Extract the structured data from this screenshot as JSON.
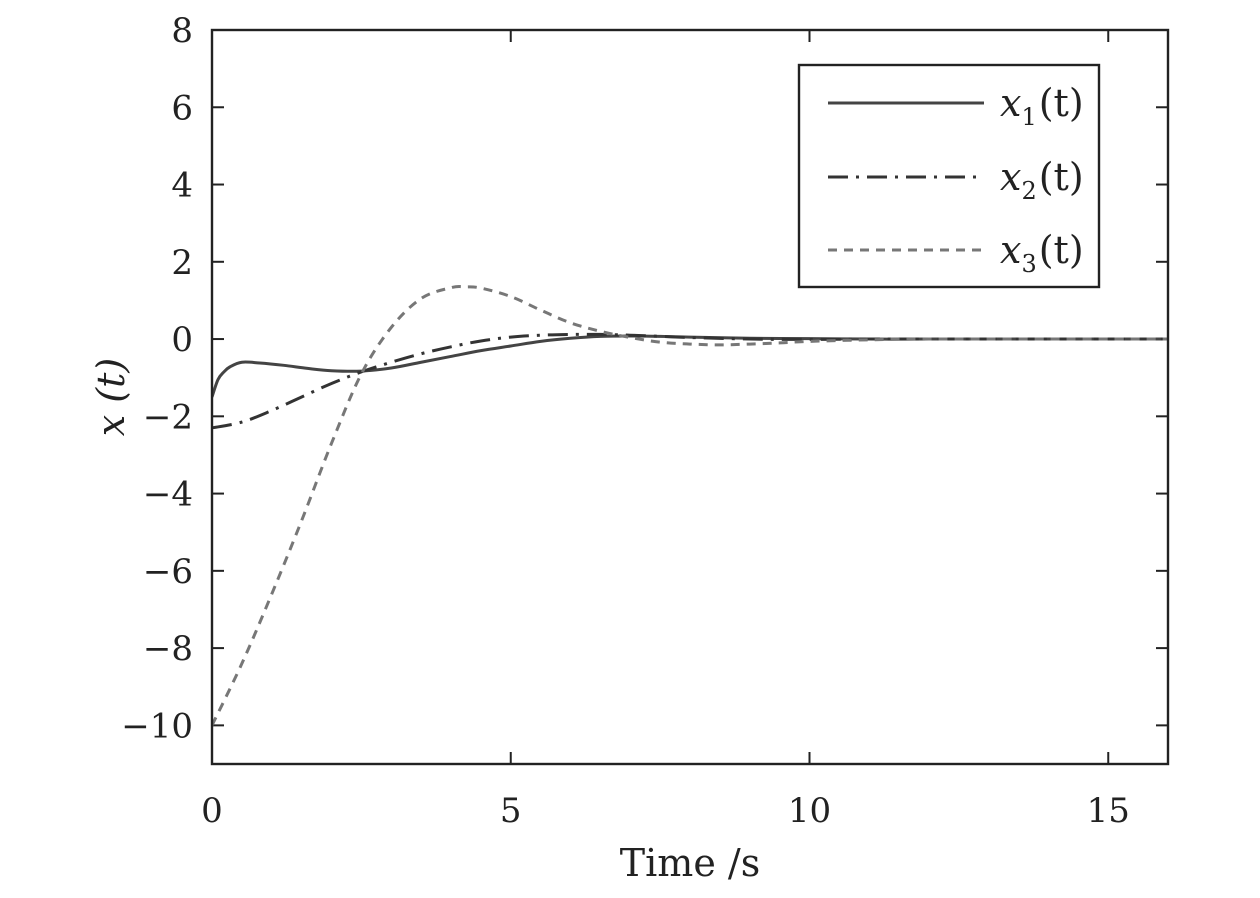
{
  "chart_data": {
    "type": "line",
    "title": "",
    "xlabel": "Time /s",
    "ylabel": "x (t)",
    "xlim": [
      0,
      16
    ],
    "ylim": [
      -11,
      8
    ],
    "xticks": [
      0,
      5,
      10,
      15
    ],
    "yticks": [
      8,
      6,
      4,
      2,
      0,
      -2,
      -4,
      -6,
      -8,
      -10
    ],
    "xtick_labels": [
      "0",
      "5",
      "10",
      "15"
    ],
    "ytick_labels": [
      "8",
      "6",
      "4",
      "2",
      "0",
      "−2",
      "−4",
      "−6",
      "−8",
      "−10"
    ],
    "grid": false,
    "legend_position": "top-right",
    "legend_entries": [
      {
        "symbol": "x",
        "subscript": "1",
        "paren": "(t)"
      },
      {
        "symbol": "x",
        "subscript": "2",
        "paren": "(t)"
      },
      {
        "symbol": "x",
        "subscript": "3",
        "paren": "(t)"
      }
    ],
    "series": [
      {
        "name": "x1(t)",
        "style": "solid",
        "color": "#444444",
        "x": [
          0,
          0.1,
          0.2,
          0.3,
          0.5,
          0.8,
          1.2,
          1.6,
          2.0,
          2.5,
          3.0,
          3.5,
          4.0,
          4.5,
          5.0,
          5.5,
          6.0,
          6.5,
          7.0,
          7.5,
          8.0,
          9.0,
          10.0,
          11.0,
          12.0,
          14.0,
          16.0
        ],
        "y": [
          -1.5,
          -1.05,
          -0.85,
          -0.72,
          -0.6,
          -0.62,
          -0.68,
          -0.76,
          -0.82,
          -0.83,
          -0.75,
          -0.6,
          -0.45,
          -0.3,
          -0.18,
          -0.06,
          0.02,
          0.07,
          0.08,
          0.07,
          0.05,
          0.02,
          0.01,
          0.0,
          0.0,
          0.0,
          0.0
        ]
      },
      {
        "name": "x2(t)",
        "style": "dashdot",
        "color": "#333333",
        "x": [
          0,
          0.5,
          1.0,
          1.5,
          2.0,
          2.5,
          3.0,
          3.5,
          4.0,
          4.5,
          5.0,
          5.5,
          6.0,
          6.5,
          7.0,
          7.5,
          8.0,
          9.0,
          10.0,
          11.0,
          12.0,
          14.0,
          16.0
        ],
        "y": [
          -2.3,
          -2.15,
          -1.85,
          -1.5,
          -1.15,
          -0.85,
          -0.6,
          -0.38,
          -0.2,
          -0.05,
          0.05,
          0.1,
          0.12,
          0.12,
          0.1,
          0.07,
          0.04,
          0.0,
          -0.01,
          0.0,
          0.0,
          0.0,
          0.0
        ]
      },
      {
        "name": "x3(t)",
        "style": "dashed",
        "color": "#777777",
        "x": [
          0,
          0.5,
          1.0,
          1.5,
          2.0,
          2.5,
          3.0,
          3.5,
          4.0,
          4.25,
          4.5,
          5.0,
          5.5,
          6.0,
          6.5,
          7.0,
          7.5,
          8.0,
          8.5,
          9.0,
          9.5,
          10.0,
          11.0,
          12.0,
          14.0,
          16.0
        ],
        "y": [
          -10.0,
          -8.4,
          -6.6,
          -4.7,
          -2.7,
          -0.9,
          0.3,
          1.05,
          1.33,
          1.35,
          1.32,
          1.1,
          0.75,
          0.42,
          0.2,
          0.04,
          -0.08,
          -0.13,
          -0.15,
          -0.13,
          -0.1,
          -0.06,
          -0.02,
          0.0,
          0.0,
          0.0
        ]
      }
    ]
  }
}
